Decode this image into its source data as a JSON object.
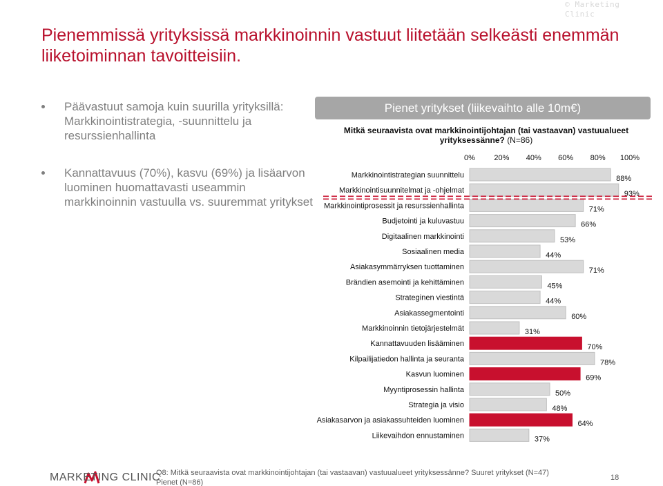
{
  "copyright": "© Marketing Clinic",
  "title": "Pienemmissä yrityksissä markkinoinnin vastuut liitetään selkeästi enemmän liiketoiminnan tavoitteisiin.",
  "bullets": [
    "Päävastuut samoja kuin suurilla yrityksillä: Markkinointistrategia, -suunnittelu ja resurssienhallinta",
    "Kannattavuus (70%), kasvu (69%) ja lisäarvon luominen huomattavasti useammin markkinoinnin vastuulla vs. suuremmat yritykset"
  ],
  "chart_header": "Pienet yritykset (liikevaihto alle 10m€)",
  "chart_question": "Mitkä seuraavista ovat markkinointijohtajan (tai vastaavan) vastuualueet yrityksessänne?",
  "chart_n": "(N=86)",
  "colors": {
    "accent": "#c8102e",
    "gray_bar": "#d9d9d9",
    "bar_border": "#bfbfbf",
    "title": "#b8102c"
  },
  "chart_data": {
    "type": "bar",
    "orientation": "horizontal",
    "xlim": [
      0,
      100
    ],
    "x_ticks": [
      "0%",
      "20%",
      "40%",
      "60%",
      "80%",
      "100%"
    ],
    "categories": [
      "Markkinointistrategian suunnittelu",
      "Markkinointisuunnitelmat ja -ohjelmat",
      "Markkinointiprosessit ja resurssienhallinta",
      "Budjetointi ja kuluvastuu",
      "Digitaalinen markkinointi",
      "Sosiaalinen media",
      "Asiakasymmärryksen tuottaminen",
      "Brändien asemointi ja kehittäminen",
      "Strateginen viestintä",
      "Asiakassegmentointi",
      "Markkinoinnin tietojärjestelmät",
      "Kannattavuuden lisääminen",
      "Kilpailijatiedon hallinta ja seuranta",
      "Kasvun luominen",
      "Myyntiprosessin hallinta",
      "Strategia ja visio",
      "Asiakasarvon ja asiakassuhteiden luominen",
      "Liikevaihdon ennustaminen"
    ],
    "values": [
      88,
      93,
      71,
      66,
      53,
      44,
      71,
      45,
      44,
      60,
      31,
      70,
      78,
      69,
      50,
      48,
      64,
      37
    ],
    "value_labels": [
      "88%",
      "93%",
      "71%",
      "66%",
      "53%",
      "44%",
      "71%",
      "45%",
      "44%",
      "60%",
      "31%",
      "70%",
      "78%",
      "69%",
      "50%",
      "48%",
      "64%",
      "37%"
    ],
    "highlighted": [
      false,
      false,
      false,
      false,
      false,
      false,
      false,
      false,
      false,
      false,
      false,
      true,
      false,
      true,
      false,
      false,
      true,
      false
    ],
    "grid": false
  },
  "footer": {
    "logo_text": "MARKETING CLINIC",
    "note": "Q8: Mitkä seuraavista ovat markkinointijohtajan (tai vastaavan) vastuualueet yrityksessänne? Suuret yritykset (N=47) Pienet (N=86)",
    "page": "18"
  }
}
